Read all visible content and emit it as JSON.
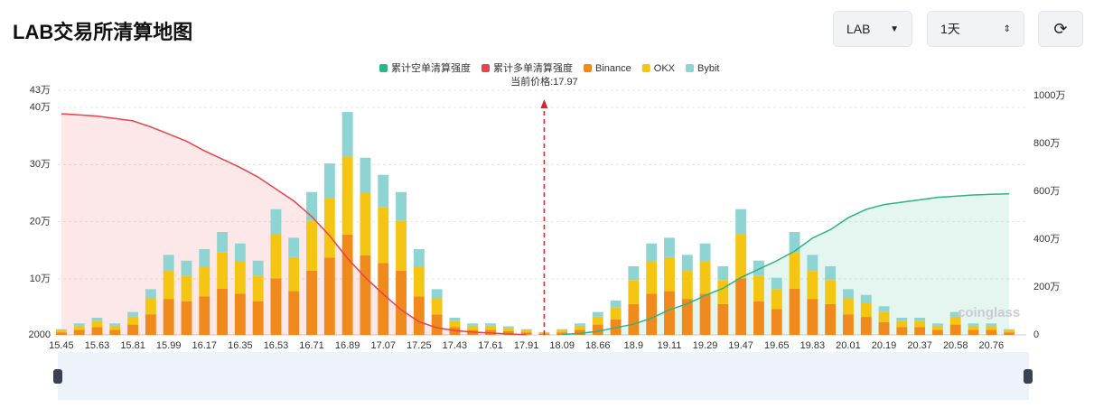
{
  "header": {
    "title": "LAB交易所清算地图",
    "symbol": "LAB",
    "interval": "1天"
  },
  "chart_data": {
    "type": "bar",
    "stacked": true,
    "annotation": "当前价格:17.97",
    "watermark": "coinglass",
    "categories": [
      "15.45",
      null,
      "15.63",
      null,
      "15.81",
      null,
      "15.99",
      null,
      "16.17",
      null,
      "16.35",
      null,
      "16.53",
      null,
      "16.71",
      null,
      "16.89",
      null,
      "17.07",
      null,
      "17.25",
      null,
      "17.43",
      null,
      "17.61",
      null,
      "17.91",
      null,
      "18.09",
      null,
      "18.66",
      null,
      "18.9",
      null,
      "19.11",
      null,
      "19.29",
      null,
      "19.47",
      null,
      "19.65",
      null,
      "19.83",
      null,
      "20.01",
      null,
      "20.19",
      null,
      "20.37",
      null,
      "20.58",
      null,
      "20.76",
      null
    ],
    "ylim": [
      2000,
      430000
    ],
    "yticks": [
      2000,
      {
        "value": 100000,
        "label": "10万"
      },
      {
        "value": 200000,
        "label": "20万"
      },
      {
        "value": 300000,
        "label": "30万"
      },
      {
        "value": 400000,
        "label": "40万"
      },
      {
        "value": 430000,
        "label": "43万"
      }
    ],
    "y2lim": [
      0,
      10230000
    ],
    "y2ticks": [
      0,
      {
        "value": 2000000,
        "label": "200万"
      },
      {
        "value": 4000000,
        "label": "400万"
      },
      {
        "value": 6000000,
        "label": "600万"
      },
      {
        "value": 8000000,
        "label": "800万"
      },
      {
        "value": 10000000,
        "label": "1000万"
      }
    ],
    "grid": true,
    "series": [
      {
        "name": "累计空单清算强度",
        "type": "line",
        "axis": "y2",
        "color": "#2bb38a",
        "fill": "rgba(43,179,138,0.12)",
        "values": [
          null,
          null,
          null,
          null,
          null,
          null,
          null,
          null,
          null,
          null,
          null,
          null,
          null,
          null,
          null,
          null,
          null,
          null,
          null,
          null,
          null,
          null,
          null,
          null,
          null,
          null,
          null,
          null,
          20000,
          60000,
          150000,
          300000,
          450000,
          700000,
          1050000,
          1300000,
          1650000,
          1950000,
          2400000,
          2750000,
          3100000,
          3500000,
          4050000,
          4400000,
          4900000,
          5250000,
          5450000,
          5550000,
          5650000,
          5750000,
          5800000,
          5850000,
          5880000,
          5900000
        ]
      },
      {
        "name": "累计多单清算强度",
        "type": "line",
        "axis": "y2",
        "color": "#e8434a",
        "fill": "rgba(232,67,74,0.12)",
        "values": [
          9250000,
          9200000,
          9150000,
          9050000,
          8950000,
          8700000,
          8400000,
          8100000,
          7700000,
          7350000,
          7000000,
          6600000,
          6100000,
          5600000,
          4950000,
          4150000,
          3200000,
          2400000,
          1700000,
          1050000,
          550000,
          300000,
          180000,
          120000,
          80000,
          40000,
          10000,
          null,
          null,
          null,
          null,
          null,
          null,
          null,
          null,
          null,
          null,
          null,
          null,
          null,
          null,
          null,
          null,
          null,
          null,
          null,
          null,
          null,
          null,
          null,
          null,
          null,
          null,
          null
        ]
      },
      {
        "name": "Binance",
        "type": "bar",
        "color": "#f08a1c",
        "values": [
          4500,
          9000,
          13500,
          9000,
          18000,
          36000,
          63000,
          58500,
          67500,
          81000,
          72000,
          58500,
          99000,
          76500,
          112500,
          135000,
          175500,
          139500,
          126000,
          112500,
          67500,
          36000,
          13500,
          9000,
          9000,
          6750,
          4500,
          2250,
          4500,
          9000,
          18000,
          27000,
          54000,
          72000,
          76500,
          63000,
          72000,
          54000,
          99000,
          58500,
          45000,
          81000,
          63000,
          54000,
          36000,
          31500,
          22500,
          13500,
          13500,
          9000,
          18000,
          9000,
          9000,
          4500
        ]
      },
      {
        "name": "OKX",
        "type": "bar",
        "color": "#f5c514",
        "values": [
          3500,
          7000,
          10500,
          7000,
          14000,
          28000,
          49000,
          45500,
          52500,
          63000,
          56000,
          45500,
          77000,
          59500,
          87500,
          105000,
          136500,
          108500,
          98000,
          87500,
          52500,
          28000,
          10500,
          7000,
          7000,
          5250,
          3500,
          1750,
          3500,
          7000,
          14000,
          21000,
          42000,
          56000,
          59500,
          49000,
          56000,
          42000,
          77000,
          45500,
          35000,
          63000,
          49000,
          42000,
          28000,
          24500,
          17500,
          10500,
          10500,
          7000,
          14000,
          7000,
          7000,
          3500
        ]
      },
      {
        "name": "Bybit",
        "type": "bar",
        "color": "#8ed4d2",
        "values": [
          2000,
          4000,
          6000,
          4000,
          8000,
          16000,
          28000,
          26000,
          30000,
          36000,
          32000,
          26000,
          44000,
          34000,
          50000,
          60000,
          78000,
          62000,
          56000,
          50000,
          30000,
          16000,
          6000,
          4000,
          4000,
          3000,
          2000,
          1000,
          2000,
          4000,
          8000,
          12000,
          24000,
          32000,
          34000,
          28000,
          32000,
          24000,
          44000,
          26000,
          20000,
          36000,
          28000,
          24000,
          16000,
          14000,
          10000,
          6000,
          6000,
          4000,
          8000,
          4000,
          4000,
          2000
        ]
      }
    ]
  }
}
